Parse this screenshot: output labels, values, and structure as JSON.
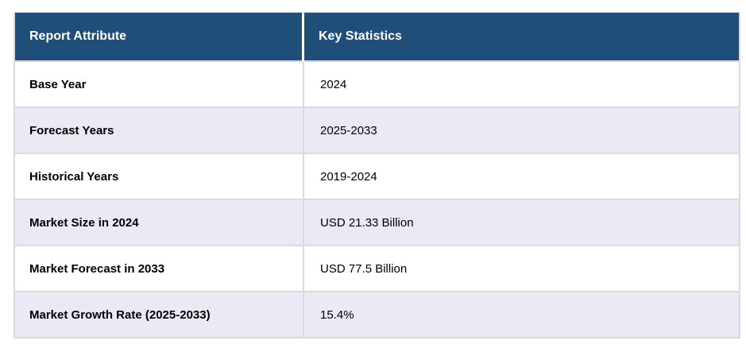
{
  "page": {
    "background": "#ffffff"
  },
  "table": {
    "columns": [
      "Report Attribute",
      "Key Statistics"
    ],
    "rows": [
      {
        "attribute": "Base Year",
        "value": "2024"
      },
      {
        "attribute": "Forecast Years",
        "value": "2025-2033"
      },
      {
        "attribute": "Historical Years",
        "value": "2019-2024"
      },
      {
        "attribute": "Market Size in 2024",
        "value": "USD 21.33 Billion"
      },
      {
        "attribute": "Market Forecast in 2033",
        "value": "USD 77.5 Billion"
      },
      {
        "attribute": "Market Growth Rate (2025-2033)",
        "value": "15.4%"
      }
    ],
    "colors": {
      "header_bg": "#1f4e79",
      "header_text": "#ffffff",
      "row_bg": "#ffffff",
      "row_alt_bg": "#e9eaf4",
      "border": "#d8d9e2",
      "body_text": "#000000"
    }
  }
}
